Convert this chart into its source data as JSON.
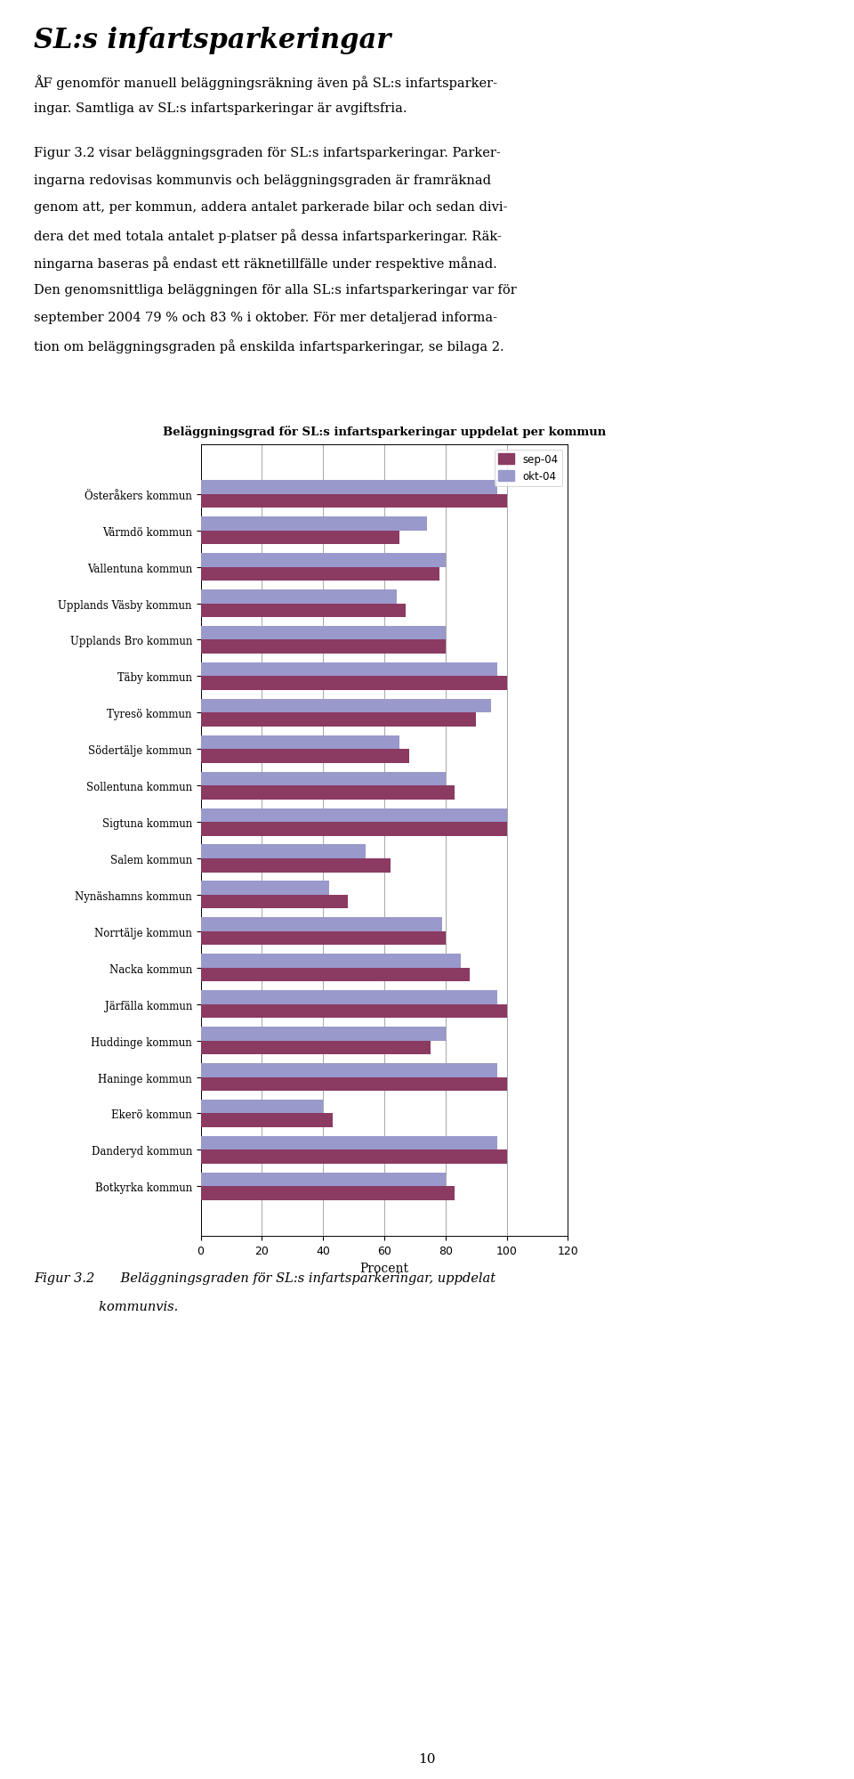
{
  "title": "Beläggningsgrad för SL:s infartsparkeringar uppdelat per kommun",
  "categories": [
    "Österåkers kommun",
    "Värmdö kommun",
    "Vallentuna kommun",
    "Upplands Väsby kommun",
    "Upplands Bro kommun",
    "Täby kommun",
    "Tyresö kommun",
    "Södertälje kommun",
    "Sollentuna kommun",
    "Sigtuna kommun",
    "Salem kommun",
    "Nynäshamns kommun",
    "Norrtälje kommun",
    "Nacka kommun",
    "Järfälla kommun",
    "Huddinge kommun",
    "Haninge kommun",
    "Ekerö kommun",
    "Danderyd kommun",
    "Botkyrka kommun"
  ],
  "sep04": [
    100,
    65,
    78,
    67,
    80,
    100,
    90,
    68,
    83,
    100,
    62,
    48,
    80,
    88,
    100,
    75,
    100,
    43,
    100,
    83
  ],
  "okt04": [
    97,
    74,
    80,
    64,
    80,
    97,
    95,
    65,
    80,
    100,
    54,
    42,
    79,
    85,
    97,
    80,
    97,
    40,
    97,
    80
  ],
  "sep04_color": "#8B3A62",
  "okt04_color": "#9999CC",
  "xlim": [
    0,
    120
  ],
  "xticks": [
    0,
    20,
    40,
    60,
    80,
    100,
    120
  ],
  "xlabel": "Procent",
  "legend_sep04": "sep-04",
  "legend_okt04": "okt-04",
  "heading": "SL:s infartsparkeringar",
  "body_lines": [
    "ÅF genomför manuell beläggningsräkning även på SL:s infartsparker-",
    "ingar. Samtliga av SL:s infartsparkeringar är avgiftsfria.",
    "",
    "Figur 3.2 visar beläggningsgraden för SL:s infartsparkeringar. Parker-",
    "ingarna redovisas kommunvis och beläggningsgraden är framräknad",
    "genom att, per kommun, addera antalet parkerade bilar och sedan divi-",
    "dera det med totala antalet p-platser på dessa infartsparkeringar. Räk-",
    "ningarna baseras på endast ett räknetillfälle under respektive månad.",
    "Den genomsnittliga beläggningen för alla SL:s infartsparkeringar var för",
    "september 2004 79 % och 83 % i oktober. För mer detaljerad informa-",
    "tion om beläggningsgraden på enskilda infartsparkeringar, se bilaga 2."
  ],
  "caption_line1": "Figur 3.2  Beläggningsgraden för SL:s infartsparkeringar, uppdelat",
  "caption_line2": "     kommunvis.",
  "page_number": "10"
}
